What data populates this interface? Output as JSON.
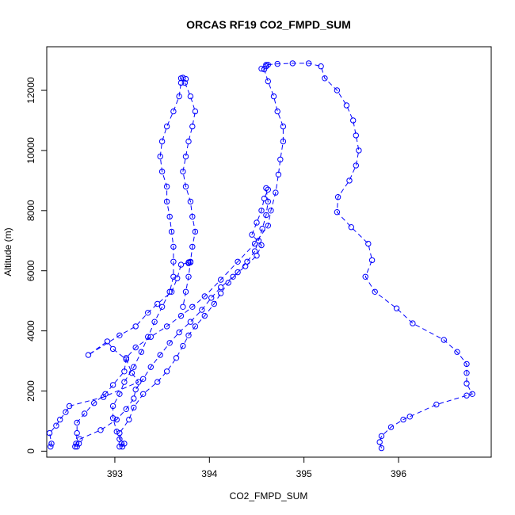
{
  "chart_data": {
    "type": "line",
    "title": "ORCAS RF19 CO2_FMPD_SUM",
    "xlabel": "CO2_FMPD_SUM",
    "ylabel": "Altitude (m)",
    "xlim": [
      392.28,
      396.98
    ],
    "ylim": [
      -200,
      13450
    ],
    "xticks": [
      393,
      394,
      395,
      396
    ],
    "yticks": [
      0,
      2000,
      4000,
      6000,
      8000,
      10000,
      12000
    ],
    "grid": false,
    "legend": "none",
    "marker": "open-circle",
    "line_style": "dashed",
    "color": "#0000ff",
    "series": [
      {
        "points": [
          [
            392.32,
            150
          ],
          [
            392.33,
            250
          ],
          [
            392.31,
            600
          ],
          [
            392.38,
            850
          ],
          [
            392.42,
            1050
          ],
          [
            392.48,
            1300
          ],
          [
            392.52,
            1500
          ],
          [
            392.88,
            1800
          ],
          [
            393.25,
            2300
          ],
          [
            393.18,
            2600
          ],
          [
            393.12,
            3050
          ],
          [
            392.98,
            3400
          ],
          [
            392.92,
            3650
          ],
          [
            392.72,
            3200
          ],
          [
            393.05,
            3850
          ],
          [
            393.22,
            4150
          ],
          [
            393.35,
            4600
          ],
          [
            393.45,
            4900
          ],
          [
            393.6,
            5300
          ],
          [
            393.66,
            5750
          ],
          [
            393.7,
            6200
          ],
          [
            393.78,
            6280
          ],
          [
            393.8,
            6280
          ],
          [
            393.78,
            6250
          ]
        ]
      },
      {
        "points": [
          [
            392.58,
            150
          ],
          [
            392.59,
            250
          ],
          [
            392.6,
            600
          ],
          [
            392.6,
            950
          ],
          [
            392.68,
            1250
          ],
          [
            392.78,
            1600
          ],
          [
            392.9,
            1900
          ],
          [
            392.98,
            2200
          ],
          [
            393.1,
            2650
          ],
          [
            393.12,
            3100
          ],
          [
            393.22,
            3450
          ],
          [
            393.38,
            3800
          ],
          [
            393.55,
            4150
          ],
          [
            393.7,
            4500
          ],
          [
            393.82,
            4800
          ],
          [
            393.95,
            5150
          ],
          [
            394.12,
            5700
          ],
          [
            394.3,
            6300
          ],
          [
            394.48,
            6900
          ],
          [
            394.62,
            7500
          ],
          [
            394.65,
            8000
          ],
          [
            394.7,
            8600
          ],
          [
            394.73,
            9200
          ],
          [
            394.75,
            9700
          ],
          [
            394.78,
            10300
          ],
          [
            394.78,
            10800
          ],
          [
            394.72,
            11300
          ],
          [
            394.68,
            11800
          ],
          [
            394.62,
            12300
          ],
          [
            394.58,
            12700
          ],
          [
            394.6,
            12800
          ],
          [
            394.62,
            12850
          ]
        ]
      },
      {
        "points": [
          [
            393.05,
            150
          ],
          [
            393.07,
            250
          ],
          [
            393.05,
            600
          ],
          [
            393.15,
            1050
          ],
          [
            393.2,
            1450
          ],
          [
            393.3,
            1900
          ],
          [
            393.45,
            2300
          ],
          [
            393.55,
            2650
          ],
          [
            393.65,
            3100
          ],
          [
            393.72,
            3500
          ],
          [
            393.78,
            3850
          ],
          [
            393.85,
            4150
          ],
          [
            393.95,
            4500
          ],
          [
            394.05,
            4900
          ],
          [
            394.12,
            5250
          ],
          [
            394.2,
            5600
          ],
          [
            394.3,
            5950
          ],
          [
            394.4,
            6300
          ],
          [
            394.48,
            6650
          ],
          [
            394.52,
            7000
          ],
          [
            394.56,
            7400
          ],
          [
            394.6,
            7850
          ],
          [
            394.62,
            8300
          ],
          [
            394.6,
            8750
          ]
        ]
      },
      {
        "points": [
          [
            392.6,
            150
          ],
          [
            392.62,
            250
          ],
          [
            392.63,
            400
          ],
          [
            392.85,
            700
          ],
          [
            393.02,
            1050
          ],
          [
            393.12,
            1400
          ],
          [
            393.2,
            1750
          ],
          [
            393.22,
            2050
          ],
          [
            393.3,
            2400
          ],
          [
            393.38,
            2800
          ],
          [
            393.48,
            3200
          ],
          [
            393.58,
            3600
          ],
          [
            393.68,
            3950
          ],
          [
            393.8,
            4300
          ],
          [
            393.92,
            4700
          ],
          [
            394.02,
            5100
          ],
          [
            394.12,
            5450
          ],
          [
            394.25,
            5800
          ],
          [
            394.38,
            6150
          ],
          [
            394.5,
            6500
          ],
          [
            394.55,
            6850
          ],
          [
            394.45,
            7200
          ],
          [
            394.5,
            7600
          ],
          [
            394.55,
            8000
          ],
          [
            394.58,
            8400
          ],
          [
            394.62,
            8700
          ]
        ]
      },
      {
        "points": [
          [
            393.08,
            150
          ],
          [
            393.1,
            250
          ],
          [
            393.05,
            400
          ],
          [
            393.02,
            650
          ],
          [
            392.98,
            1100
          ],
          [
            392.98,
            1500
          ],
          [
            393.05,
            1900
          ],
          [
            393.1,
            2300
          ],
          [
            393.2,
            2800
          ],
          [
            393.28,
            3300
          ],
          [
            393.35,
            3800
          ],
          [
            393.42,
            4300
          ],
          [
            393.5,
            4800
          ],
          [
            393.58,
            5300
          ],
          [
            393.62,
            5800
          ],
          [
            393.62,
            6300
          ],
          [
            393.62,
            6800
          ],
          [
            393.6,
            7300
          ],
          [
            393.58,
            7800
          ],
          [
            393.55,
            8300
          ],
          [
            393.55,
            8800
          ],
          [
            393.5,
            9300
          ],
          [
            393.48,
            9800
          ],
          [
            393.5,
            10300
          ],
          [
            393.55,
            10800
          ],
          [
            393.62,
            11300
          ],
          [
            393.68,
            11800
          ],
          [
            393.7,
            12250
          ],
          [
            393.7,
            12400
          ],
          [
            393.72,
            12420
          ],
          [
            393.75,
            12380
          ]
        ]
      },
      {
        "points": [
          [
            393.74,
            12250
          ],
          [
            393.8,
            11800
          ],
          [
            393.85,
            11300
          ],
          [
            393.82,
            10800
          ],
          [
            393.78,
            10300
          ],
          [
            393.75,
            9800
          ],
          [
            393.72,
            9300
          ],
          [
            393.75,
            8800
          ],
          [
            393.8,
            8300
          ],
          [
            393.82,
            7800
          ],
          [
            393.85,
            7300
          ],
          [
            393.82,
            6800
          ],
          [
            393.8,
            6300
          ],
          [
            393.78,
            5800
          ],
          [
            393.75,
            5300
          ],
          [
            393.72,
            4800
          ]
        ]
      },
      {
        "points": [
          [
            395.82,
            100
          ],
          [
            395.8,
            300
          ],
          [
            395.82,
            500
          ],
          [
            395.92,
            800
          ],
          [
            396.05,
            1050
          ],
          [
            396.12,
            1150
          ],
          [
            396.4,
            1550
          ],
          [
            396.72,
            1850
          ],
          [
            396.78,
            1900
          ],
          [
            396.72,
            2250
          ],
          [
            396.72,
            2600
          ],
          [
            396.72,
            2900
          ],
          [
            396.62,
            3300
          ],
          [
            396.48,
            3700
          ],
          [
            396.15,
            4250
          ],
          [
            395.98,
            4750
          ],
          [
            395.75,
            5300
          ],
          [
            395.65,
            5800
          ],
          [
            395.72,
            6350
          ],
          [
            395.68,
            6900
          ],
          [
            395.5,
            7450
          ],
          [
            395.35,
            7950
          ],
          [
            395.36,
            8450
          ],
          [
            395.48,
            9000
          ],
          [
            395.55,
            9500
          ],
          [
            395.58,
            10000
          ],
          [
            395.55,
            10500
          ],
          [
            395.52,
            11000
          ],
          [
            395.45,
            11500
          ],
          [
            395.35,
            12000
          ],
          [
            395.22,
            12400
          ],
          [
            395.18,
            12800
          ],
          [
            395.05,
            12900
          ],
          [
            394.88,
            12900
          ],
          [
            394.72,
            12880
          ],
          [
            394.6,
            12850
          ],
          [
            394.55,
            12720
          ]
        ]
      }
    ]
  }
}
